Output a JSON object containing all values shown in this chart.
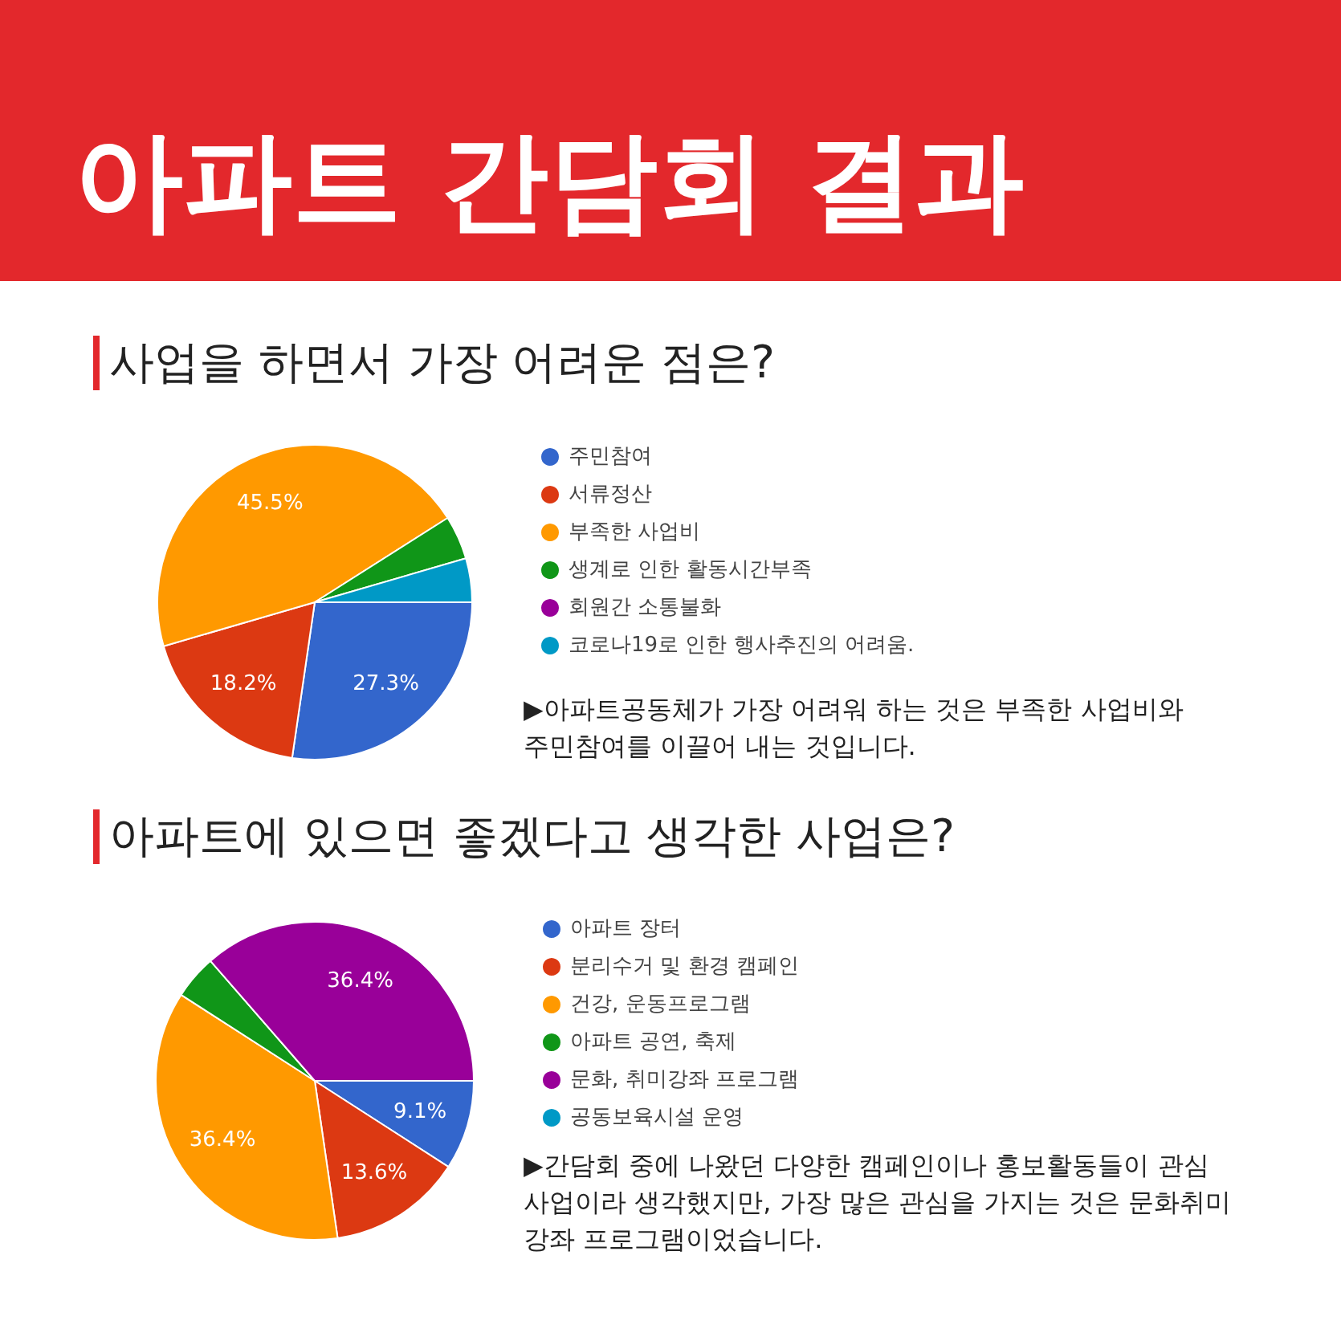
{
  "chart_data": [
    {
      "type": "pie",
      "title": "아파트 간담회 결과",
      "subtitle": "사업을 하면서 가장 어려운 점은?",
      "categories": [
        "주민참여",
        "서류정산",
        "부족한 사업비",
        "생계로 인한 활동시간부족",
        "회원간 소통불화",
        "코로나19로 인한 행사추진의 어려움."
      ],
      "values": [
        27.3,
        18.2,
        45.5,
        4.5,
        0,
        4.5
      ],
      "colors": [
        "#3366cc",
        "#dc3912",
        "#ff9900",
        "#109618",
        "#990099",
        "#0099c6"
      ],
      "value_labels": [
        "27.3%",
        "18.2%",
        "45.5%",
        null,
        null,
        null
      ],
      "legend": "right",
      "annotations": [
        "▶아파트공동체가 가장 어려워 하는 것은 부족한 사업비와 주민참여를 이끌어 내는 것입니다."
      ]
    },
    {
      "type": "pie",
      "title": "아파트에 있으면 좋겠다고 생각한 사업은?",
      "categories": [
        "아파트 장터",
        "분리수거 및 환경 캠페인",
        "건강, 운동프로그램",
        "아파트 공연, 축제",
        "문화, 취미강좌 프로그램",
        "공동보육시설 운영"
      ],
      "values": [
        9.1,
        13.6,
        36.4,
        4.5,
        36.4,
        0
      ],
      "colors": [
        "#3366cc",
        "#dc3912",
        "#ff9900",
        "#109618",
        "#990099",
        "#0099c6"
      ],
      "value_labels": [
        "9.1%",
        "13.6%",
        "36.4%",
        null,
        "36.4%",
        null
      ],
      "legend": "right",
      "annotations": [
        "▶간담회 중에 나왔던 다양한 캠페인이나 홍보활동들이 관심 사업이라 생각했지만, 가장 많은 관심을 가지는 것은 문화취미 강좌 프로그램이었습니다."
      ]
    }
  ]
}
